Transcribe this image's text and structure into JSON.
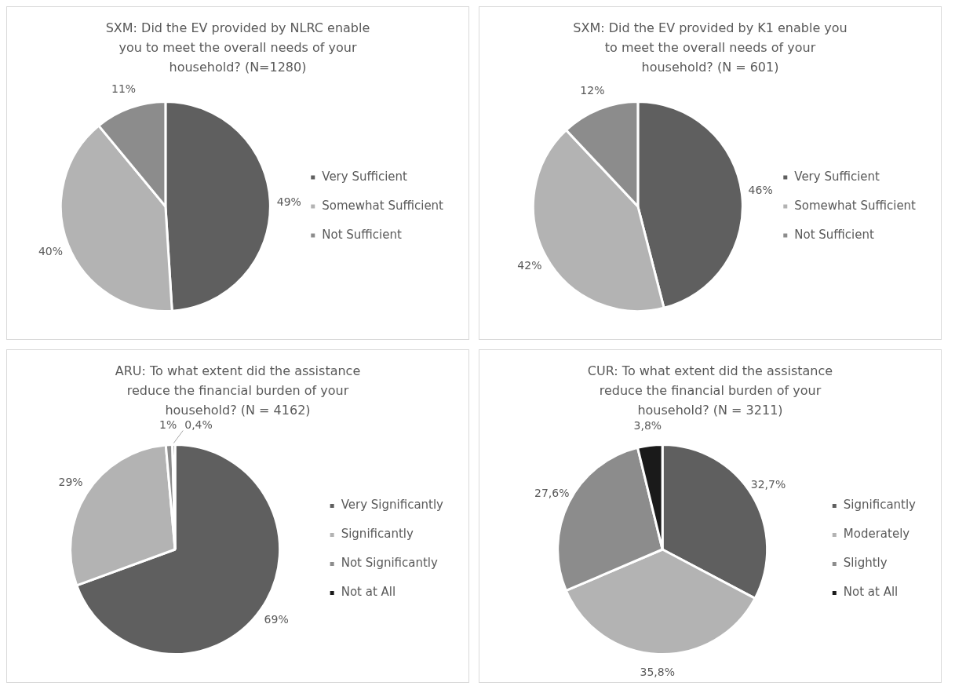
{
  "chart_data": [
    {
      "type": "pie",
      "title": "SXM: Did the EV provided by NLRC enable you to meet the overall needs of your household? (N=1280)",
      "categories": [
        "Very Sufficient",
        "Somewhat Sufficient",
        "Not Sufficient"
      ],
      "values": [
        49,
        40,
        11
      ],
      "value_labels": [
        "49%",
        "40%",
        "11%"
      ],
      "colors": [
        "#5f5f5f",
        "#b3b3b3",
        "#8c8c8c"
      ],
      "legend": "right"
    },
    {
      "type": "pie",
      "title": "SXM: Did the EV provided by K1 enable you to meet the overall needs of your household? (N = 601)",
      "categories": [
        "Very Sufficient",
        "Somewhat Sufficient",
        "Not Sufficient"
      ],
      "values": [
        46,
        42,
        12
      ],
      "value_labels": [
        "46%",
        "42%",
        "12%"
      ],
      "colors": [
        "#5f5f5f",
        "#b3b3b3",
        "#8c8c8c"
      ],
      "legend": "right"
    },
    {
      "type": "pie",
      "title": "ARU: To what extent did the assistance reduce the financial burden of your household? (N = 4162)",
      "categories": [
        "Very Significantly",
        "Significantly",
        "Not Significantly",
        "Not at All"
      ],
      "values": [
        69,
        29,
        1,
        0.4
      ],
      "value_labels": [
        "69%",
        "29%",
        "1%",
        "0,4%"
      ],
      "colors": [
        "#5f5f5f",
        "#b3b3b3",
        "#8c8c8c",
        "#1a1a1a"
      ],
      "legend": "right"
    },
    {
      "type": "pie",
      "title": "CUR: To what extent did the assistance reduce the financial burden of your household? (N = 3211)",
      "categories": [
        "Significantly",
        "Moderately",
        "Slightly",
        "Not at All"
      ],
      "values": [
        32.7,
        35.8,
        27.6,
        3.8
      ],
      "value_labels": [
        "32,7%",
        "35,8%",
        "27,6%",
        "3,8%"
      ],
      "colors": [
        "#5f5f5f",
        "#b3b3b3",
        "#8c8c8c",
        "#1a1a1a"
      ],
      "legend": "right"
    }
  ]
}
